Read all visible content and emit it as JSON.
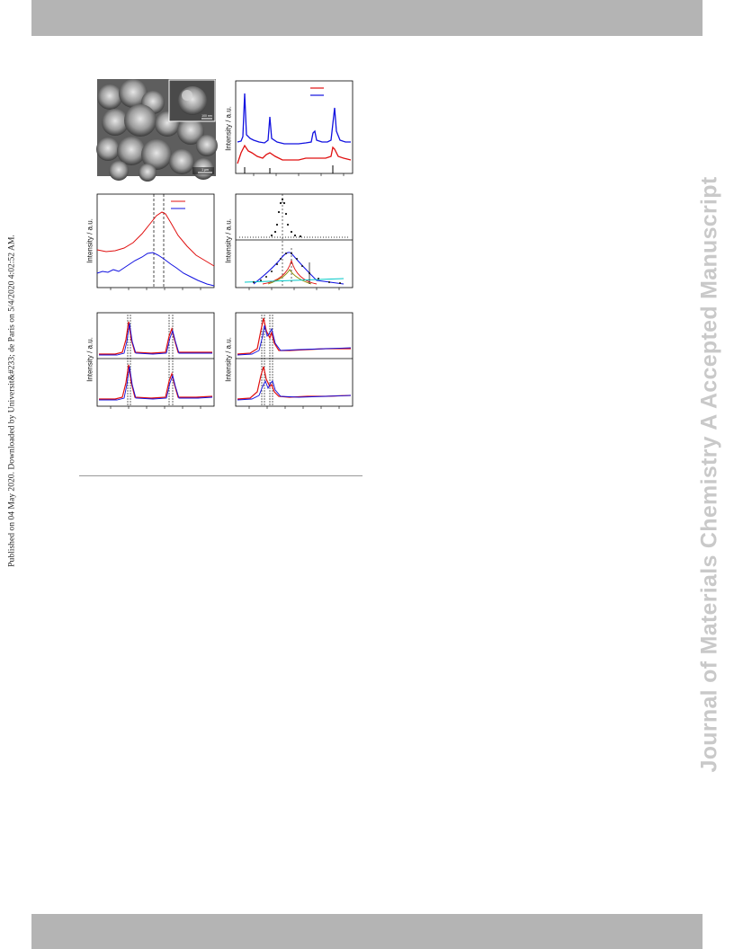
{
  "side_left_text": "Published on 04 May 2020. Downloaded by Universit&#233; de Paris on 5/4/2020 4:02:52 AM.",
  "side_right_text": "Journal of Materials Chemistry A Accepted Manuscript",
  "sem": {
    "scale_main": "1 μm",
    "scale_inset": "100 nm"
  },
  "y_axis_label": "Intensity / a.u.",
  "colors": {
    "red": "#e01010",
    "blue": "#1010e0",
    "black": "#000000",
    "cyan": "#00c8c8",
    "olive": "#8a8a00",
    "header_band": "#b4b4b4",
    "watermark": "#c9c9c9"
  }
}
